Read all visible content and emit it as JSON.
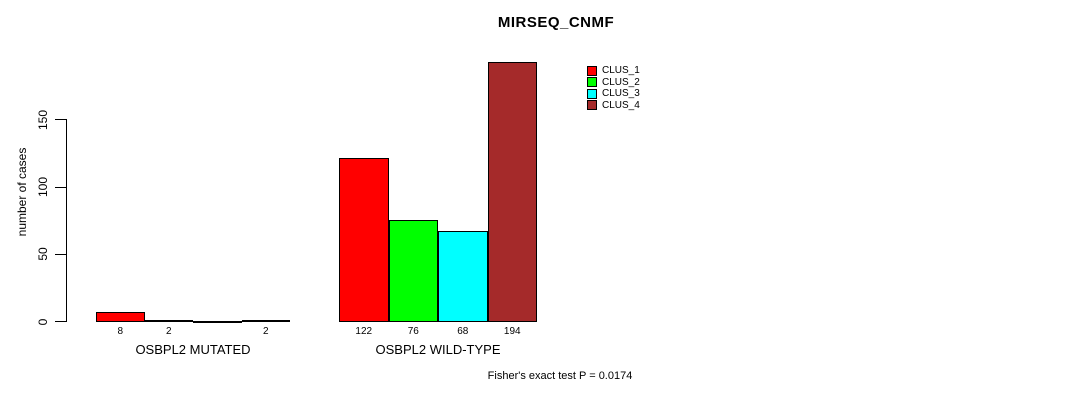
{
  "chart_data": {
    "type": "bar",
    "title": "MIRSEQ_CNMF",
    "ylabel": "number of cases",
    "xlabel": "",
    "yticks": [
      0,
      50,
      100,
      150
    ],
    "ylim": [
      0,
      200
    ],
    "grid": false,
    "legend_position": "top-right",
    "categories": [
      "OSBPL2 MUTATED",
      "OSBPL2 WILD-TYPE"
    ],
    "series": [
      {
        "name": "CLUS_1",
        "color": "#FF0000",
        "values": [
          8,
          122
        ]
      },
      {
        "name": "CLUS_2",
        "color": "#00FF00",
        "values": [
          2,
          76
        ]
      },
      {
        "name": "CLUS_3",
        "color": "#00FFFF",
        "values": [
          0,
          68
        ]
      },
      {
        "name": "CLUS_4",
        "color": "#A52A2A",
        "values": [
          2,
          194
        ]
      }
    ],
    "bar_value_labels": [
      [
        "8",
        "2",
        "",
        "2"
      ],
      [
        "122",
        "76",
        "68",
        "194"
      ]
    ],
    "annotation": "Fisher's exact test P = 0.0174",
    "axis_color": "#000000",
    "background_color": "#FFFFFF"
  }
}
